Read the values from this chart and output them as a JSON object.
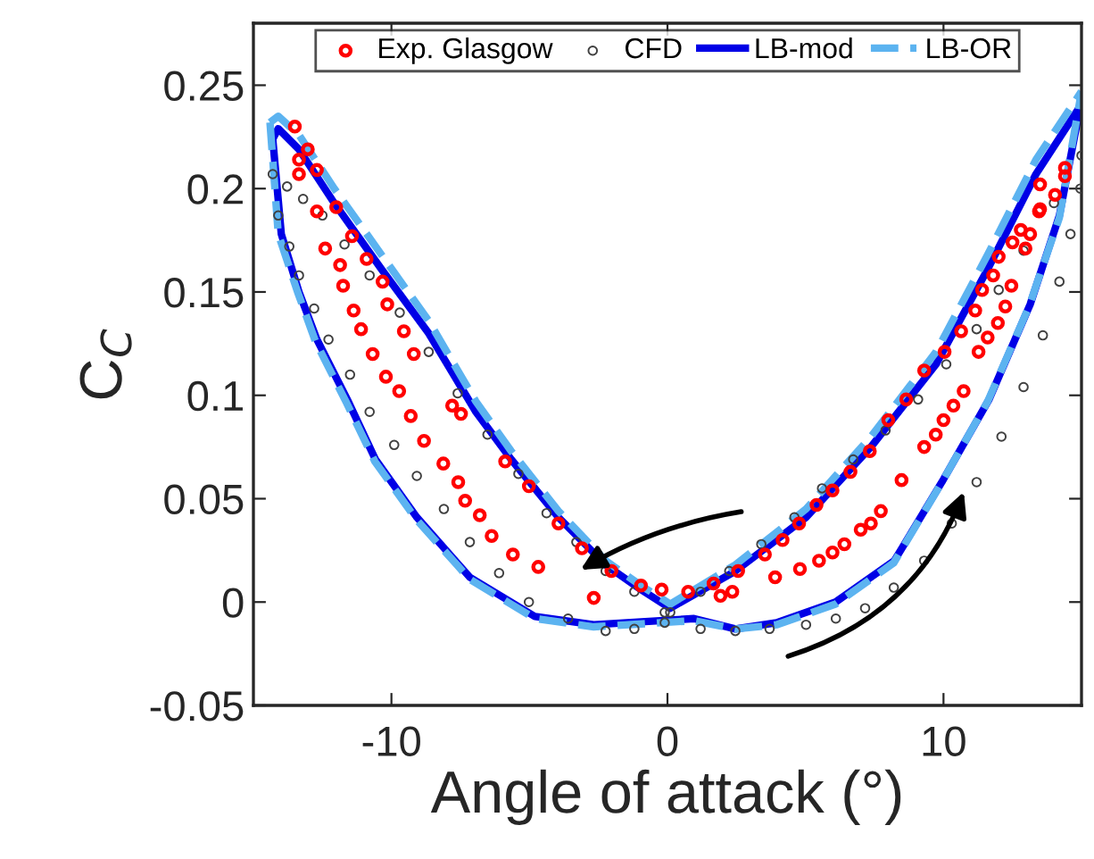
{
  "chart_data": {
    "type": "line",
    "xlabel": "Angle of attack (°)",
    "ylabel": "C$_{C}$",
    "xlim": [
      -15,
      15
    ],
    "ylim": [
      -0.05,
      0.28
    ],
    "xticks": [
      -10,
      0,
      10
    ],
    "yticks": [
      -0.05,
      0,
      0.05,
      0.1,
      0.15,
      0.2,
      0.25
    ],
    "grid": false,
    "legend": "top",
    "series": [
      {
        "name": "Exp. Glasgow",
        "type": "scatter",
        "marker": "circle",
        "color": "#ff0000",
        "x": [
          14.4,
          13.5,
          13.5,
          12.8,
          12.5,
          12.0,
          11.8,
          11.4,
          11.15,
          10.64,
          10.04,
          9.3,
          8.65,
          8.0,
          7.33,
          6.63,
          5.98,
          5.4,
          4.77,
          4.17,
          3.53,
          2.56,
          1.67,
          0.75,
          -0.21,
          -0.96,
          -2.03,
          -3.1,
          -3.95,
          -5.02,
          -5.88,
          -7.48,
          -7.8,
          -9.19,
          -9.55,
          -10.15,
          -10.32,
          -10.9,
          -11.43,
          -12.0,
          -12.7,
          -13.03,
          -13.5,
          -13.35,
          -13.35,
          -12.7,
          -12.4,
          -11.86,
          -11.75,
          -11.37,
          -11.1,
          -10.68,
          -10.2,
          -9.72,
          -9.3,
          -8.82,
          -8.12,
          -7.58,
          -7.33,
          -6.8,
          -6.37,
          -5.6,
          -4.68,
          -2.67,
          1.92,
          2.35,
          3.9,
          4.8,
          5.49,
          5.98,
          6.41,
          7.0,
          7.37,
          7.73,
          8.48,
          9.3,
          9.72,
          10.0,
          10.36,
          10.73,
          11.27,
          11.6,
          11.97,
          12.24,
          12.46,
          12.97,
          13.14,
          13.46,
          14.04,
          14.4
        ],
        "values": [
          0.21,
          0.202,
          0.19,
          0.18,
          0.174,
          0.167,
          0.158,
          0.151,
          0.141,
          0.131,
          0.121,
          0.112,
          0.098,
          0.088,
          0.073,
          0.063,
          0.054,
          0.047,
          0.038,
          0.03,
          0.023,
          0.015,
          0.009,
          0.005,
          0.006,
          0.008,
          0.015,
          0.026,
          0.038,
          0.056,
          0.068,
          0.091,
          0.095,
          0.12,
          0.131,
          0.144,
          0.155,
          0.166,
          0.177,
          0.191,
          0.209,
          0.219,
          0.23,
          0.214,
          0.207,
          0.189,
          0.171,
          0.163,
          0.153,
          0.141,
          0.132,
          0.12,
          0.109,
          0.102,
          0.09,
          0.078,
          0.067,
          0.058,
          0.049,
          0.042,
          0.032,
          0.023,
          0.017,
          0.002,
          0.003,
          0.005,
          0.012,
          0.016,
          0.02,
          0.024,
          0.028,
          0.035,
          0.038,
          0.044,
          0.059,
          0.075,
          0.081,
          0.088,
          0.095,
          0.102,
          0.121,
          0.128,
          0.135,
          0.143,
          0.153,
          0.171,
          0.178,
          0.189,
          0.197,
          0.206
        ]
      },
      {
        "name": "CFD",
        "type": "scatter",
        "marker": "circle",
        "color": "#404040",
        "x": [
          15,
          14.0,
          12.9,
          12.0,
          11.2,
          10.1,
          9.08,
          7.9,
          6.73,
          5.6,
          4.6,
          3.4,
          2.24,
          1.2,
          0.1,
          -0.1,
          -1.2,
          -2.24,
          -3.3,
          -4.38,
          -5.4,
          -6.52,
          -7.6,
          -8.65,
          -9.7,
          -10.79,
          -11.7,
          -12.5,
          -13.2,
          -13.78,
          -14.3,
          -14.1,
          -13.7,
          -13.35,
          -12.8,
          -12.28,
          -11.5,
          -10.79,
          -9.9,
          -9.08,
          -8.1,
          -7.16,
          -6.1,
          -5.02,
          -3.6,
          -2.24,
          -1.2,
          -0.1,
          1.2,
          2.46,
          3.7,
          5.02,
          6.1,
          7.16,
          8.2,
          9.3,
          10.3,
          11.2,
          12.1,
          12.9,
          13.6,
          14.2,
          14.6,
          14.96
        ],
        "values": [
          0.216,
          0.193,
          0.17,
          0.151,
          0.132,
          0.115,
          0.098,
          0.083,
          0.069,
          0.055,
          0.041,
          0.028,
          0.015,
          0.005,
          -0.005,
          -0.005,
          0.005,
          0.015,
          0.029,
          0.043,
          0.062,
          0.081,
          0.101,
          0.121,
          0.14,
          0.158,
          0.173,
          0.187,
          0.195,
          0.201,
          0.207,
          0.187,
          0.172,
          0.158,
          0.142,
          0.127,
          0.11,
          0.092,
          0.076,
          0.061,
          0.045,
          0.029,
          0.014,
          0.0,
          -0.008,
          -0.014,
          -0.013,
          -0.01,
          -0.013,
          -0.014,
          -0.013,
          -0.011,
          -0.008,
          -0.003,
          0.007,
          0.02,
          0.038,
          0.058,
          0.08,
          0.104,
          0.129,
          0.155,
          0.178,
          0.2
        ]
      },
      {
        "name": "LB-mod",
        "line_style": "solid",
        "color": "#0000e6",
        "x": [
          -14.3,
          -14.1,
          -13.35,
          -12.07,
          -10.36,
          -8.65,
          -6.94,
          -5.66,
          -3.95,
          -2.24,
          -0.96,
          0.1,
          2.46,
          5.02,
          7.37,
          9.73,
          11.6,
          13.35,
          14.96
        ],
        "values": [
          0.224,
          0.229,
          0.219,
          0.193,
          0.161,
          0.13,
          0.092,
          0.069,
          0.041,
          0.018,
          0.006,
          -0.003,
          0.015,
          0.041,
          0.075,
          0.115,
          0.161,
          0.207,
          0.24
        ]
      },
      {
        "name": "LB-OR",
        "line_style": "dashed",
        "color": "#5cb3f0",
        "x": [
          -14.4,
          -14.1,
          -13.35,
          -12.07,
          -10.36,
          -8.65,
          -6.94,
          -5.66,
          -3.95,
          -2.24,
          -0.96,
          0.1,
          2.46,
          5.02,
          7.37,
          9.73,
          11.6,
          13.35,
          15
        ],
        "values": [
          0.232,
          0.235,
          0.226,
          0.2,
          0.168,
          0.136,
          0.097,
          0.073,
          0.044,
          0.02,
          0.008,
          -0.001,
          0.018,
          0.045,
          0.08,
          0.121,
          0.168,
          0.214,
          0.247
        ]
      },
      {
        "line_style": "solid",
        "color": "#0000e6",
        "x": [
          -14.3,
          -13.99,
          -13.35,
          -12.7,
          -11.6,
          -10.58,
          -9.08,
          -7.16,
          -4.8,
          -2.67,
          0.96,
          2.46,
          3.95,
          6.09,
          8.22,
          9.94,
          11.65,
          13.14,
          14.2,
          14.96
        ],
        "values": [
          0.224,
          0.178,
          0.15,
          0.127,
          0.098,
          0.069,
          0.041,
          0.012,
          -0.007,
          -0.011,
          -0.008,
          -0.013,
          -0.01,
          0.0,
          0.02,
          0.058,
          0.098,
          0.144,
          0.187,
          0.24
        ]
      },
      {
        "line_style": "dashed",
        "color": "#5cb3f0",
        "x": [
          -14.4,
          -14.1,
          -13.4,
          -12.75,
          -11.65,
          -10.6,
          -9.1,
          -7.16,
          -4.8,
          -2.67,
          0.96,
          2.46,
          3.95,
          6.09,
          8.2,
          9.9,
          11.6,
          13.1,
          14.2,
          15
        ],
        "values": [
          0.232,
          0.178,
          0.15,
          0.126,
          0.097,
          0.068,
          0.04,
          0.011,
          -0.008,
          -0.012,
          -0.009,
          -0.013,
          -0.011,
          -0.001,
          0.019,
          0.057,
          0.097,
          0.143,
          0.186,
          0.247
        ]
      }
    ]
  }
}
